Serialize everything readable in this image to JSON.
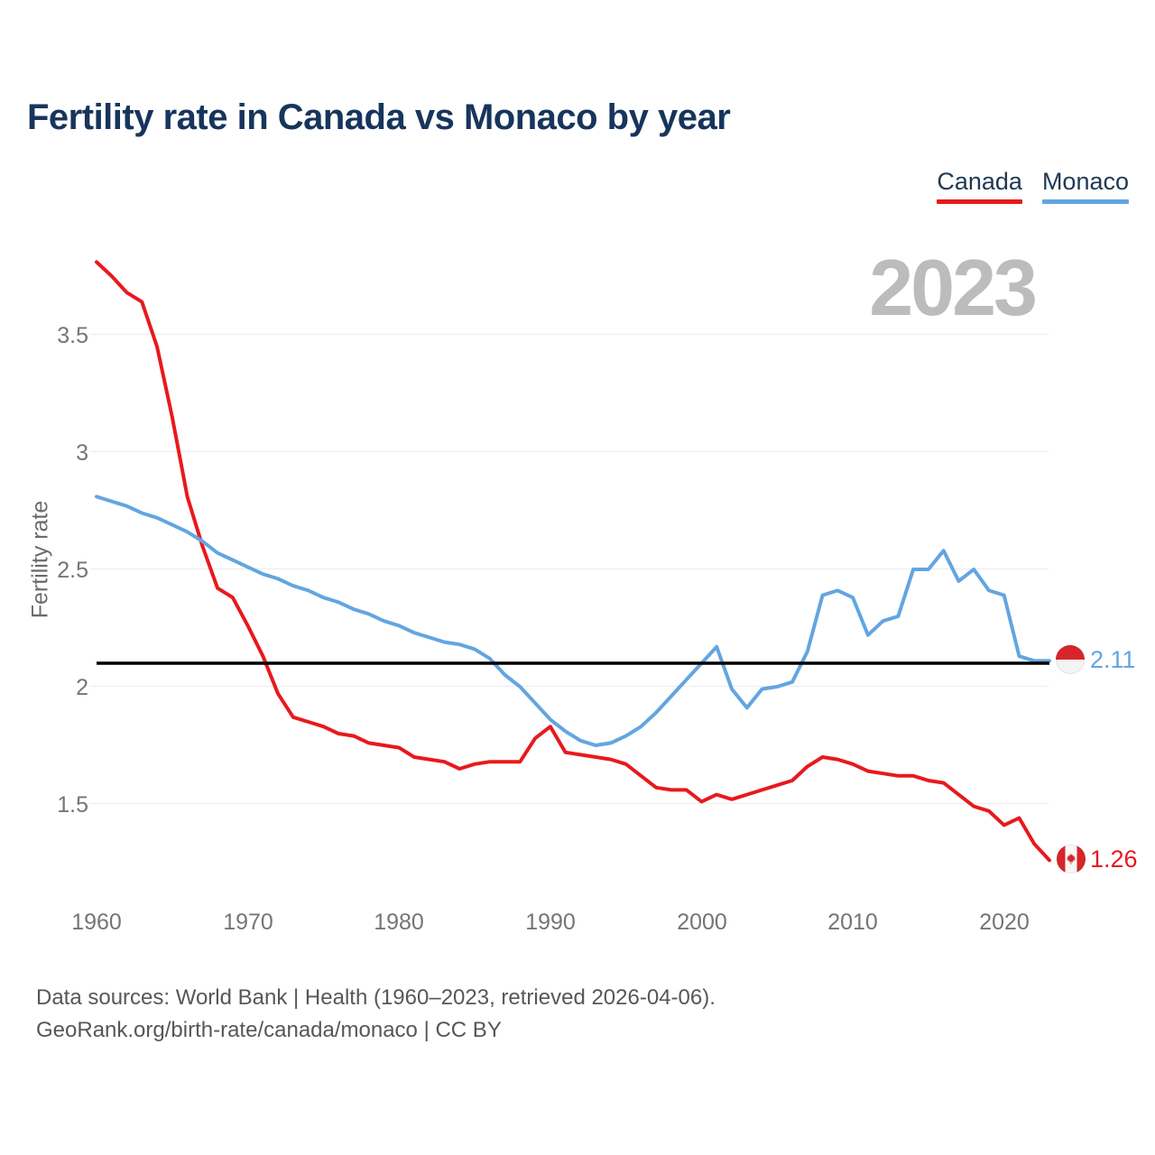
{
  "header": {
    "title": "Fertility rate in Canada vs Monaco by year"
  },
  "legend": [
    {
      "label": "Canada",
      "color": "#e8191d"
    },
    {
      "label": "Monaco",
      "color": "#63a5e1"
    }
  ],
  "watermark": "2023",
  "axes": {
    "y_label": "Fertility rate",
    "y_ticks": [
      "3.5",
      "3",
      "2.5",
      "2",
      "1.5"
    ],
    "x_ticks": [
      "1960",
      "1970",
      "1980",
      "1990",
      "2000",
      "2010",
      "2020"
    ]
  },
  "end_labels": {
    "monaco": {
      "value": "2.11",
      "color": "#63a5e1",
      "flag": "monaco-flag-icon"
    },
    "canada": {
      "value": "1.26",
      "color": "#e8191d",
      "flag": "canada-flag-icon"
    }
  },
  "footer": {
    "line1": "Data sources: World Bank | Health (1960–2023, retrieved 2026-04-06).",
    "line2": "GeoRank.org/birth-rate/canada/monaco | CC BY"
  },
  "chart_data": {
    "type": "line",
    "title": "Fertility rate in Canada vs Monaco by year",
    "xlabel": "",
    "ylabel": "Fertility rate",
    "x_start": 1960,
    "x_end": 2023,
    "ylim": [
      1.2,
      3.9
    ],
    "y_gridlines": [
      3.5,
      3.0,
      2.5,
      2.0,
      1.5
    ],
    "reference_line_y": 2.1,
    "grid": true,
    "legend_position": "top-right",
    "series": [
      {
        "name": "Canada",
        "color": "#e8191d",
        "final_value": 1.26,
        "values": [
          3.81,
          3.75,
          3.68,
          3.64,
          3.45,
          3.15,
          2.81,
          2.6,
          2.42,
          2.38,
          2.26,
          2.13,
          1.97,
          1.87,
          1.85,
          1.83,
          1.8,
          1.79,
          1.76,
          1.75,
          1.74,
          1.7,
          1.69,
          1.68,
          1.65,
          1.67,
          1.68,
          1.68,
          1.68,
          1.78,
          1.83,
          1.72,
          1.71,
          1.7,
          1.69,
          1.67,
          1.62,
          1.57,
          1.56,
          1.56,
          1.51,
          1.54,
          1.52,
          1.54,
          1.56,
          1.58,
          1.6,
          1.66,
          1.7,
          1.69,
          1.67,
          1.64,
          1.63,
          1.62,
          1.62,
          1.6,
          1.59,
          1.54,
          1.49,
          1.47,
          1.41,
          1.44,
          1.33,
          1.26
        ]
      },
      {
        "name": "Monaco",
        "color": "#63a5e1",
        "final_value": 2.11,
        "values": [
          2.81,
          2.79,
          2.77,
          2.74,
          2.72,
          2.69,
          2.66,
          2.62,
          2.57,
          2.54,
          2.51,
          2.48,
          2.46,
          2.43,
          2.41,
          2.38,
          2.36,
          2.33,
          2.31,
          2.28,
          2.26,
          2.23,
          2.21,
          2.19,
          2.18,
          2.16,
          2.12,
          2.05,
          2.0,
          1.93,
          1.86,
          1.81,
          1.77,
          1.75,
          1.76,
          1.79,
          1.83,
          1.89,
          1.96,
          2.03,
          2.1,
          2.17,
          1.99,
          1.91,
          1.99,
          2.0,
          2.02,
          2.15,
          2.39,
          2.41,
          2.38,
          2.22,
          2.28,
          2.3,
          2.5,
          2.5,
          2.58,
          2.45,
          2.5,
          2.41,
          2.39,
          2.13,
          2.11,
          2.11
        ]
      }
    ]
  }
}
